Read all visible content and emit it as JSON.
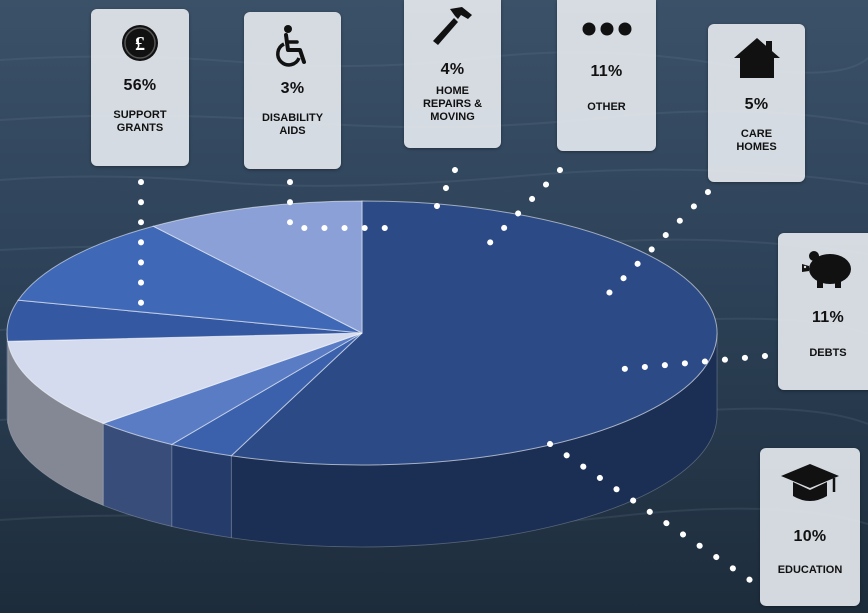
{
  "chart_data": {
    "type": "pie",
    "title": "",
    "slices": [
      {
        "label": "SUPPORT GRANTS",
        "value": 56,
        "display": "56%"
      },
      {
        "label": "DISABILITY AIDS",
        "value": 3,
        "display": "3%"
      },
      {
        "label": "HOME REPAIRS & MOVING",
        "value": 4,
        "display": "4%"
      },
      {
        "label": "OTHER",
        "value": 11,
        "display": "11%"
      },
      {
        "label": "CARE HOMES",
        "value": 5,
        "display": "5%"
      },
      {
        "label": "DEBTS",
        "value": 11,
        "display": "11%"
      },
      {
        "label": "EDUCATION",
        "value": 10,
        "display": "10%"
      }
    ]
  },
  "cards": {
    "support": {
      "pct": "56%",
      "label": "SUPPORT\nGRANTS",
      "icon": "pound-coin-icon"
    },
    "disability": {
      "pct": "3%",
      "label": "DISABILITY\nAIDS",
      "icon": "wheelchair-icon"
    },
    "home": {
      "pct": "4%",
      "label": "HOME\nREPAIRS &\nMOVING",
      "icon": "hammer-icon"
    },
    "other": {
      "pct": "11%",
      "label": "OTHER",
      "icon": "ellipsis-icon"
    },
    "care": {
      "pct": "5%",
      "label": "CARE\nHOMES",
      "icon": "house-icon"
    },
    "debts": {
      "pct": "11%",
      "label": "DEBTS",
      "icon": "piggy-bank-icon"
    },
    "education": {
      "pct": "10%",
      "label": "EDUCATION",
      "icon": "graduation-cap-icon"
    }
  },
  "colors": {
    "support": "#2c4a86",
    "disability": "#3b61ad",
    "home": "#5a7cc4",
    "other": "#d4dbef",
    "care": "#3558a3",
    "debts": "#3f68b7",
    "education": "#8aa0d6",
    "dots": "#ffffff"
  }
}
